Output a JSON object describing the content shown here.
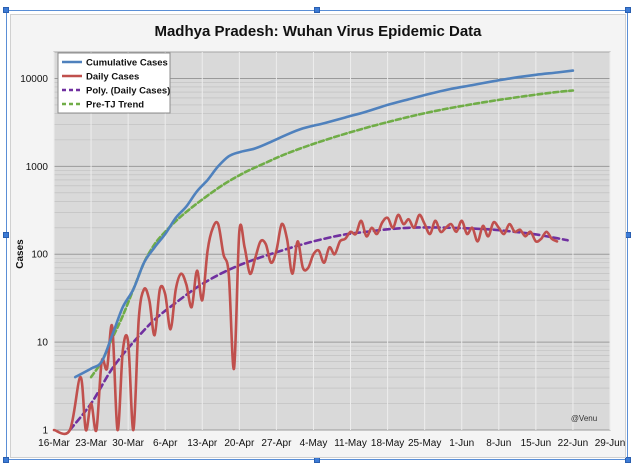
{
  "chart_data": {
    "type": "line",
    "title": "Madhya Pradesh: Wuhan Virus Epidemic Data",
    "ylabel": "Cases",
    "xlabel": "",
    "y_scale": "log",
    "ylim": [
      1,
      20000
    ],
    "xlim": [
      "2020-03-16",
      "2020-06-29"
    ],
    "grid": true,
    "legend_position": "top-left",
    "watermark": "@Venu",
    "x_tick_labels": [
      "16-Mar",
      "23-Mar",
      "30-Mar",
      "6-Apr",
      "13-Apr",
      "20-Apr",
      "27-Apr",
      "4-May",
      "11-May",
      "18-May",
      "25-May",
      "1-Jun",
      "8-Jun",
      "15-Jun",
      "22-Jun",
      "29-Jun"
    ],
    "y_tick_labels": [
      "1",
      "10",
      "100",
      "1000",
      "10000"
    ],
    "series": [
      {
        "name": "Cumulative Cases",
        "color": "#4f81bd",
        "style": "solid",
        "points": [
          [
            "2020-03-20",
            4
          ],
          [
            "2020-03-23",
            5
          ],
          [
            "2020-03-25",
            6
          ],
          [
            "2020-03-27",
            12
          ],
          [
            "2020-03-29",
            25
          ],
          [
            "2020-03-31",
            40
          ],
          [
            "2020-04-02",
            80
          ],
          [
            "2020-04-04",
            120
          ],
          [
            "2020-04-06",
            170
          ],
          [
            "2020-04-08",
            260
          ],
          [
            "2020-04-10",
            350
          ],
          [
            "2020-04-12",
            520
          ],
          [
            "2020-04-14",
            700
          ],
          [
            "2020-04-16",
            1000
          ],
          [
            "2020-04-18",
            1300
          ],
          [
            "2020-04-20",
            1450
          ],
          [
            "2020-04-23",
            1600
          ],
          [
            "2020-04-26",
            1900
          ],
          [
            "2020-04-29",
            2300
          ],
          [
            "2020-05-02",
            2700
          ],
          [
            "2020-05-06",
            3100
          ],
          [
            "2020-05-10",
            3600
          ],
          [
            "2020-05-14",
            4200
          ],
          [
            "2020-05-18",
            5000
          ],
          [
            "2020-05-22",
            5800
          ],
          [
            "2020-05-26",
            6700
          ],
          [
            "2020-05-30",
            7600
          ],
          [
            "2020-06-03",
            8400
          ],
          [
            "2020-06-07",
            9300
          ],
          [
            "2020-06-11",
            10200
          ],
          [
            "2020-06-15",
            11000
          ],
          [
            "2020-06-19",
            11700
          ],
          [
            "2020-06-22",
            12300
          ]
        ]
      },
      {
        "name": "Daily Cases",
        "color": "#c0504d",
        "style": "solid",
        "points": [
          [
            "2020-03-16",
            1
          ],
          [
            "2020-03-19",
            1
          ],
          [
            "2020-03-21",
            4
          ],
          [
            "2020-03-22",
            1
          ],
          [
            "2020-03-23",
            2
          ],
          [
            "2020-03-24",
            1
          ],
          [
            "2020-03-25",
            6
          ],
          [
            "2020-03-26",
            5
          ],
          [
            "2020-03-27",
            15
          ],
          [
            "2020-03-28",
            1
          ],
          [
            "2020-03-29",
            8
          ],
          [
            "2020-03-30",
            10
          ],
          [
            "2020-03-31",
            1
          ],
          [
            "2020-04-01",
            18
          ],
          [
            "2020-04-02",
            40
          ],
          [
            "2020-04-03",
            30
          ],
          [
            "2020-04-04",
            12
          ],
          [
            "2020-04-05",
            40
          ],
          [
            "2020-04-06",
            35
          ],
          [
            "2020-04-07",
            14
          ],
          [
            "2020-04-08",
            40
          ],
          [
            "2020-04-09",
            60
          ],
          [
            "2020-04-10",
            45
          ],
          [
            "2020-04-11",
            25
          ],
          [
            "2020-04-12",
            65
          ],
          [
            "2020-04-13",
            30
          ],
          [
            "2020-04-14",
            110
          ],
          [
            "2020-04-15",
            200
          ],
          [
            "2020-04-16",
            220
          ],
          [
            "2020-04-17",
            100
          ],
          [
            "2020-04-18",
            60
          ],
          [
            "2020-04-19",
            5
          ],
          [
            "2020-04-20",
            180
          ],
          [
            "2020-04-21",
            120
          ],
          [
            "2020-04-22",
            60
          ],
          [
            "2020-04-23",
            90
          ],
          [
            "2020-04-24",
            140
          ],
          [
            "2020-04-25",
            130
          ],
          [
            "2020-04-26",
            80
          ],
          [
            "2020-04-27",
            110
          ],
          [
            "2020-04-28",
            220
          ],
          [
            "2020-04-29",
            150
          ],
          [
            "2020-04-30",
            60
          ],
          [
            "2020-05-01",
            140
          ],
          [
            "2020-05-02",
            70
          ],
          [
            "2020-05-03",
            70
          ],
          [
            "2020-05-04",
            100
          ],
          [
            "2020-05-05",
            110
          ],
          [
            "2020-05-06",
            80
          ],
          [
            "2020-05-07",
            120
          ],
          [
            "2020-05-08",
            100
          ],
          [
            "2020-05-09",
            140
          ],
          [
            "2020-05-10",
            150
          ],
          [
            "2020-05-11",
            180
          ],
          [
            "2020-05-12",
            170
          ],
          [
            "2020-05-13",
            240
          ],
          [
            "2020-05-14",
            160
          ],
          [
            "2020-05-15",
            200
          ],
          [
            "2020-05-16",
            170
          ],
          [
            "2020-05-17",
            230
          ],
          [
            "2020-05-18",
            260
          ],
          [
            "2020-05-19",
            200
          ],
          [
            "2020-05-20",
            280
          ],
          [
            "2020-05-21",
            220
          ],
          [
            "2020-05-22",
            250
          ],
          [
            "2020-05-23",
            200
          ],
          [
            "2020-05-24",
            280
          ],
          [
            "2020-05-25",
            220
          ],
          [
            "2020-05-26",
            170
          ],
          [
            "2020-05-27",
            240
          ],
          [
            "2020-05-28",
            180
          ],
          [
            "2020-05-29",
            200
          ],
          [
            "2020-05-30",
            220
          ],
          [
            "2020-05-31",
            180
          ],
          [
            "2020-06-01",
            240
          ],
          [
            "2020-06-02",
            170
          ],
          [
            "2020-06-03",
            200
          ],
          [
            "2020-06-04",
            140
          ],
          [
            "2020-06-05",
            210
          ],
          [
            "2020-06-06",
            160
          ],
          [
            "2020-06-07",
            230
          ],
          [
            "2020-06-08",
            200
          ],
          [
            "2020-06-09",
            170
          ],
          [
            "2020-06-10",
            220
          ],
          [
            "2020-06-11",
            180
          ],
          [
            "2020-06-12",
            190
          ],
          [
            "2020-06-13",
            160
          ],
          [
            "2020-06-14",
            180
          ],
          [
            "2020-06-15",
            140
          ],
          [
            "2020-06-16",
            150
          ],
          [
            "2020-06-17",
            180
          ],
          [
            "2020-06-18",
            150
          ],
          [
            "2020-06-19",
            140
          ]
        ]
      },
      {
        "name": "Poly. (Daily Cases)",
        "color": "#7030a0",
        "style": "dashed",
        "points": [
          [
            "2020-03-19",
            1
          ],
          [
            "2020-03-23",
            2
          ],
          [
            "2020-03-27",
            5
          ],
          [
            "2020-03-31",
            10
          ],
          [
            "2020-04-04",
            18
          ],
          [
            "2020-04-08",
            28
          ],
          [
            "2020-04-12",
            42
          ],
          [
            "2020-04-16",
            58
          ],
          [
            "2020-04-20",
            75
          ],
          [
            "2020-04-24",
            92
          ],
          [
            "2020-04-28",
            110
          ],
          [
            "2020-05-02",
            130
          ],
          [
            "2020-05-06",
            150
          ],
          [
            "2020-05-10",
            168
          ],
          [
            "2020-05-14",
            180
          ],
          [
            "2020-05-18",
            192
          ],
          [
            "2020-05-22",
            200
          ],
          [
            "2020-05-26",
            202
          ],
          [
            "2020-05-30",
            200
          ],
          [
            "2020-06-03",
            196
          ],
          [
            "2020-06-07",
            190
          ],
          [
            "2020-06-11",
            180
          ],
          [
            "2020-06-15",
            168
          ],
          [
            "2020-06-19",
            152
          ],
          [
            "2020-06-21",
            144
          ]
        ]
      },
      {
        "name": "Pre-TJ Trend",
        "color": "#70ad47",
        "style": "dashed",
        "points": [
          [
            "2020-03-23",
            4
          ],
          [
            "2020-03-25",
            6
          ],
          [
            "2020-03-27",
            11
          ],
          [
            "2020-03-29",
            20
          ],
          [
            "2020-03-31",
            40
          ],
          [
            "2020-04-02",
            80
          ],
          [
            "2020-04-04",
            130
          ],
          [
            "2020-04-06",
            180
          ],
          [
            "2020-04-09",
            270
          ],
          [
            "2020-04-13",
            420
          ],
          [
            "2020-04-17",
            620
          ],
          [
            "2020-04-21",
            850
          ],
          [
            "2020-04-25",
            1100
          ],
          [
            "2020-04-29",
            1400
          ],
          [
            "2020-05-04",
            1800
          ],
          [
            "2020-05-09",
            2250
          ],
          [
            "2020-05-14",
            2750
          ],
          [
            "2020-05-19",
            3300
          ],
          [
            "2020-05-24",
            3900
          ],
          [
            "2020-05-29",
            4500
          ],
          [
            "2020-06-03",
            5100
          ],
          [
            "2020-06-08",
            5700
          ],
          [
            "2020-06-13",
            6300
          ],
          [
            "2020-06-18",
            6900
          ],
          [
            "2020-06-22",
            7300
          ]
        ]
      }
    ]
  }
}
